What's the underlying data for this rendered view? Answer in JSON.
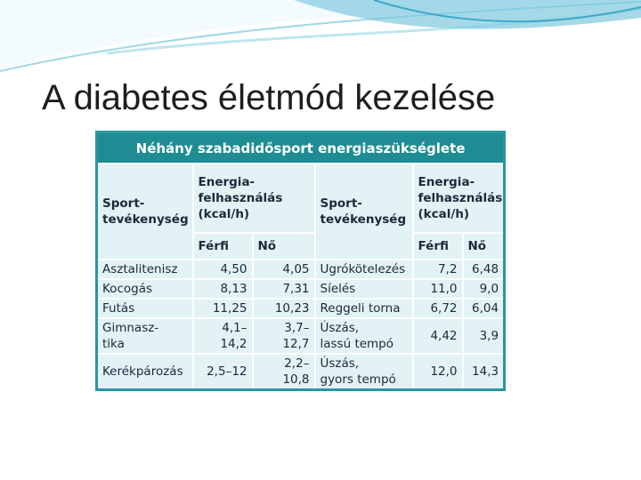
{
  "slide": {
    "title": "A diabetes életmód kezelése"
  },
  "table": {
    "title": "Néhány szabadidősport energiaszükséglete",
    "header": {
      "sport": [
        "Sport-\ntevékenység",
        "Sport-\ntevékenység"
      ],
      "energy": [
        "Energia-\nfelhasználás\n(kcal/h)",
        "Energia-\nfelhasználás\n(kcal/h)"
      ],
      "sub": [
        "Férfi",
        "Nő",
        "Férfi",
        "Nő"
      ]
    },
    "rows": [
      [
        "Asztalitenisz",
        "4,50",
        "4,05",
        "Ugrókötelezés",
        "7,2",
        "6,48"
      ],
      [
        "Kocogás",
        "8,13",
        "7,31",
        "Síelés",
        "11,0",
        "9,0"
      ],
      [
        "Futás",
        "11,25",
        "10,23",
        "Reggeli torna",
        "6,72",
        "6,04"
      ],
      [
        "Gimnasz-\ntika",
        "4,1–14,2",
        "3,7–12,7",
        "Úszás,\nlassú tempó",
        "4,42",
        "3,9"
      ],
      [
        "Kerékpározás",
        "2,5–12",
        "2,2–10,8",
        "Úszás,\ngyors tempó",
        "12,0",
        "14,3"
      ]
    ]
  }
}
